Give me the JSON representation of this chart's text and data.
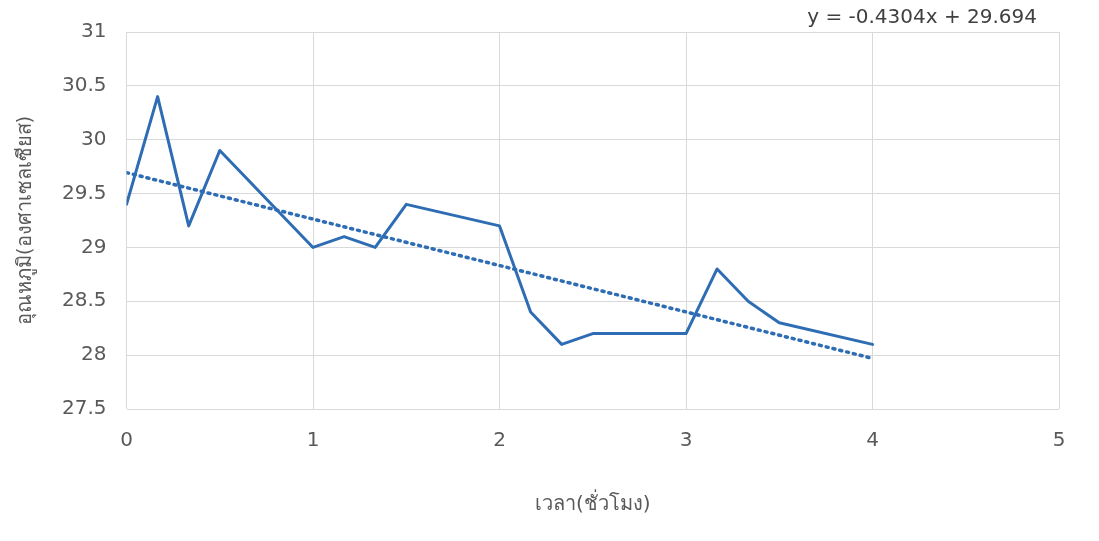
{
  "chart_data": {
    "type": "line",
    "xlabel": "เวลา(ชั่วโมง)",
    "ylabel": "อุณหภูมิ(องศาเซลเซียส)",
    "annotations": [
      "y = -0.4304x + 29.694"
    ],
    "series": [
      {
        "color": "#2e6db4",
        "x": [
          0,
          0.1667,
          0.3333,
          0.5,
          1,
          1.1667,
          1.3333,
          1.5,
          2,
          2.1667,
          2.3333,
          2.5,
          3,
          3.1667,
          3.3333,
          3.5,
          4
        ],
        "values": [
          29.4,
          30.4,
          29.2,
          29.9,
          29.0,
          29.1,
          29.0,
          29.4,
          29.2,
          28.4,
          28.1,
          28.2,
          28.2,
          28.8,
          28.5,
          28.3,
          28.1
        ]
      },
      {
        "type": "line",
        "color": "#2e6db4",
        "line_style": "dotted",
        "x": [
          0,
          4
        ],
        "values": [
          29.694,
          27.97
        ]
      }
    ],
    "xlim": [
      0,
      5
    ],
    "xticks": [
      0,
      1,
      2,
      3,
      4,
      5
    ],
    "ylim": [
      27.5,
      31
    ],
    "yticks": [
      27.5,
      28,
      28.5,
      29,
      29.5,
      30,
      30.5,
      31
    ],
    "grid": true,
    "legend": false,
    "marker": "none"
  }
}
